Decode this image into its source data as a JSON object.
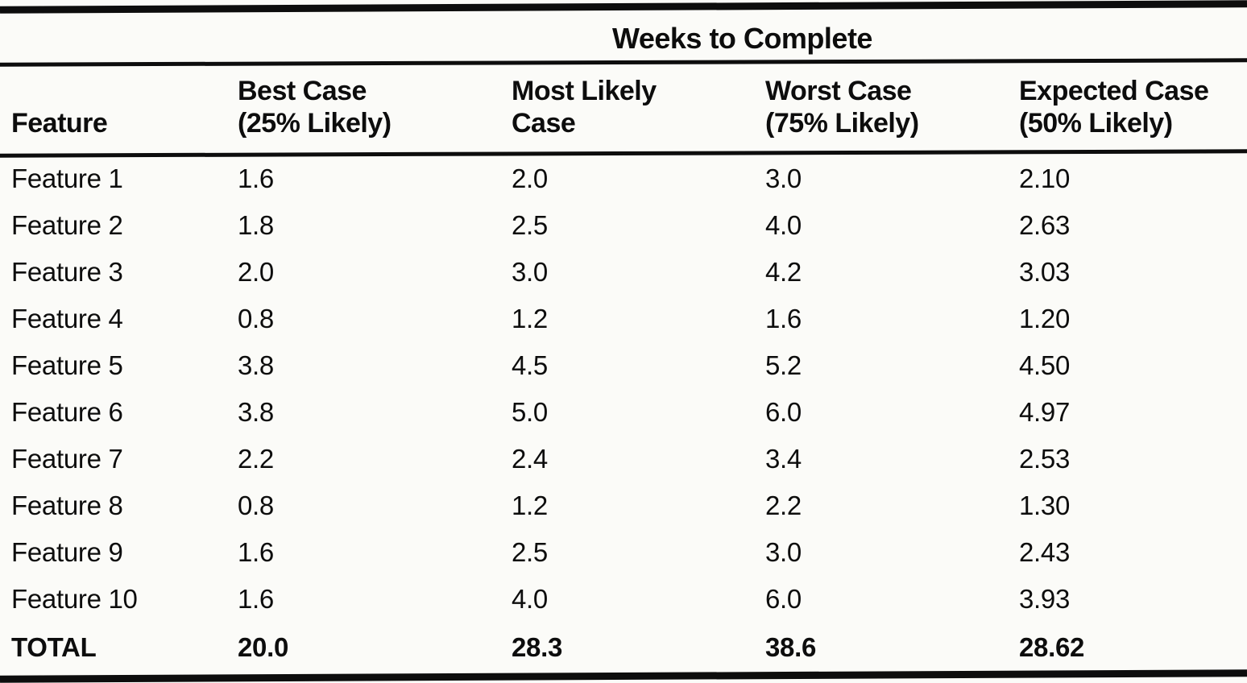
{
  "colors": {
    "ink": "#0d0d0d",
    "paper": "#fbfbf8"
  },
  "table": {
    "spanning_header": "Weeks to Complete",
    "columns": [
      {
        "line1": "",
        "line2": "Feature"
      },
      {
        "line1": "Best Case",
        "line2": "(25% Likely)"
      },
      {
        "line1": "Most Likely",
        "line2": "Case"
      },
      {
        "line1": "Worst Case",
        "line2": "(75% Likely)"
      },
      {
        "line1": "Expected Case",
        "line2": "(50% Likely)"
      }
    ],
    "rows": [
      {
        "feature": "Feature 1",
        "best_case": "1.6",
        "most_likely": "2.0",
        "worst_case": "3.0",
        "expected_case": "2.10"
      },
      {
        "feature": "Feature 2",
        "best_case": "1.8",
        "most_likely": "2.5",
        "worst_case": "4.0",
        "expected_case": "2.63"
      },
      {
        "feature": "Feature 3",
        "best_case": "2.0",
        "most_likely": "3.0",
        "worst_case": "4.2",
        "expected_case": "3.03"
      },
      {
        "feature": "Feature 4",
        "best_case": "0.8",
        "most_likely": "1.2",
        "worst_case": "1.6",
        "expected_case": "1.20"
      },
      {
        "feature": "Feature 5",
        "best_case": "3.8",
        "most_likely": "4.5",
        "worst_case": "5.2",
        "expected_case": "4.50"
      },
      {
        "feature": "Feature 6",
        "best_case": "3.8",
        "most_likely": "5.0",
        "worst_case": "6.0",
        "expected_case": "4.97"
      },
      {
        "feature": "Feature 7",
        "best_case": "2.2",
        "most_likely": "2.4",
        "worst_case": "3.4",
        "expected_case": "2.53"
      },
      {
        "feature": "Feature 8",
        "best_case": "0.8",
        "most_likely": "1.2",
        "worst_case": "2.2",
        "expected_case": "1.30"
      },
      {
        "feature": "Feature 9",
        "best_case": "1.6",
        "most_likely": "2.5",
        "worst_case": "3.0",
        "expected_case": "2.43"
      },
      {
        "feature": "Feature 10",
        "best_case": "1.6",
        "most_likely": "4.0",
        "worst_case": "6.0",
        "expected_case": "3.93"
      }
    ],
    "total_row": {
      "feature": "TOTAL",
      "best_case": "20.0",
      "most_likely": "28.3",
      "worst_case": "38.6",
      "expected_case": "28.62"
    }
  },
  "chart_data": {
    "type": "table",
    "title": "Weeks to Complete",
    "columns": [
      "Feature",
      "Best Case (25% Likely)",
      "Most Likely Case",
      "Worst Case (75% Likely)",
      "Expected Case (50% Likely)"
    ],
    "rows": [
      [
        "Feature 1",
        1.6,
        2.0,
        3.0,
        2.1
      ],
      [
        "Feature 2",
        1.8,
        2.5,
        4.0,
        2.63
      ],
      [
        "Feature 3",
        2.0,
        3.0,
        4.2,
        3.03
      ],
      [
        "Feature 4",
        0.8,
        1.2,
        1.6,
        1.2
      ],
      [
        "Feature 5",
        3.8,
        4.5,
        5.2,
        4.5
      ],
      [
        "Feature 6",
        3.8,
        5.0,
        6.0,
        4.97
      ],
      [
        "Feature 7",
        2.2,
        2.4,
        3.4,
        2.53
      ],
      [
        "Feature 8",
        0.8,
        1.2,
        2.2,
        1.3
      ],
      [
        "Feature 9",
        1.6,
        2.5,
        3.0,
        2.43
      ],
      [
        "Feature 10",
        1.6,
        4.0,
        6.0,
        3.93
      ],
      [
        "TOTAL",
        20.0,
        28.3,
        38.6,
        28.62
      ]
    ]
  }
}
